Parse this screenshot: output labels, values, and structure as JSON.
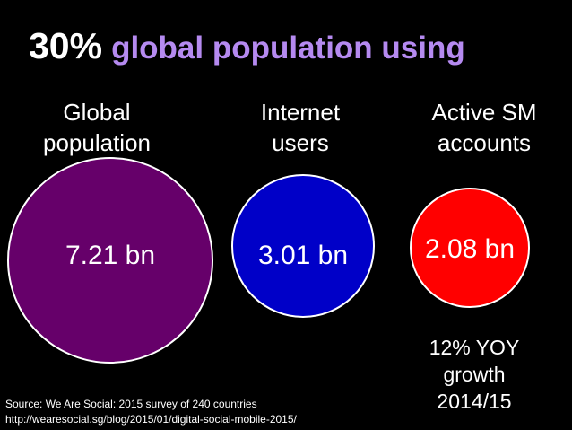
{
  "title": {
    "percent": "30%",
    "text": "global population using"
  },
  "columns": [
    {
      "label": "Global\npopulation",
      "value": "7.21 bn",
      "color": "#66006a"
    },
    {
      "label": "Internet\nusers",
      "value": "3.01 bn",
      "color": "#0000c8"
    },
    {
      "label": "Active SM\naccounts",
      "value": "2.08 bn",
      "color": "#ff0000"
    }
  ],
  "growth_note": "12% YOY\ngrowth\n2014/15",
  "source": {
    "line1": "Source: We Are Social: 2015 survey of  240 countries",
    "line2": "http://wearesocial.sg/blog/2015/01/digital-social-mobile-2015/"
  },
  "colors": {
    "background": "#000000",
    "title_accent": "#b58af0"
  }
}
